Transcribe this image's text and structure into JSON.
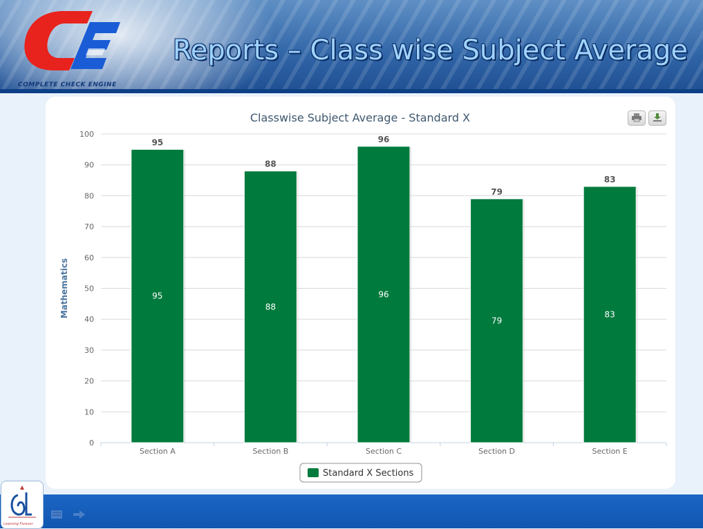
{
  "header": {
    "title": "Reports – Class wise Subject Average",
    "logo_caption": "Complete Check Engine",
    "logo_icon": "cc-logo-icon"
  },
  "toolbar": {
    "print_icon": "print-icon",
    "download_icon": "download-icon"
  },
  "footer": {
    "logo_icon": "learning-logo-icon",
    "logo_caption": "Learning Forever",
    "nav_icons": [
      "slide-menu-icon",
      "next-arrow-icon"
    ]
  },
  "colors": {
    "bar": "#007a3d",
    "title_text": "#3e576f",
    "axis_text": "#666666",
    "ylabel": "#4d759e",
    "grid": "#d8d8d8",
    "header_blue": "#2f64a6",
    "footer_blue": "#1560bd"
  },
  "chart_data": {
    "type": "bar",
    "title": "Classwise Subject Average - Standard X",
    "xlabel": "",
    "ylabel": "Mathematics",
    "categories": [
      "Section A",
      "Section B",
      "Section C",
      "Section D",
      "Section E"
    ],
    "series": [
      {
        "name": "Standard X Sections",
        "values": [
          95,
          88,
          96,
          79,
          83
        ]
      }
    ],
    "ylim": [
      0,
      100
    ],
    "yticks": [
      0,
      10,
      20,
      30,
      40,
      50,
      60,
      70,
      80,
      90,
      100
    ],
    "grid": true,
    "legend_position": "bottom-center",
    "data_labels": "above and inside bars"
  }
}
